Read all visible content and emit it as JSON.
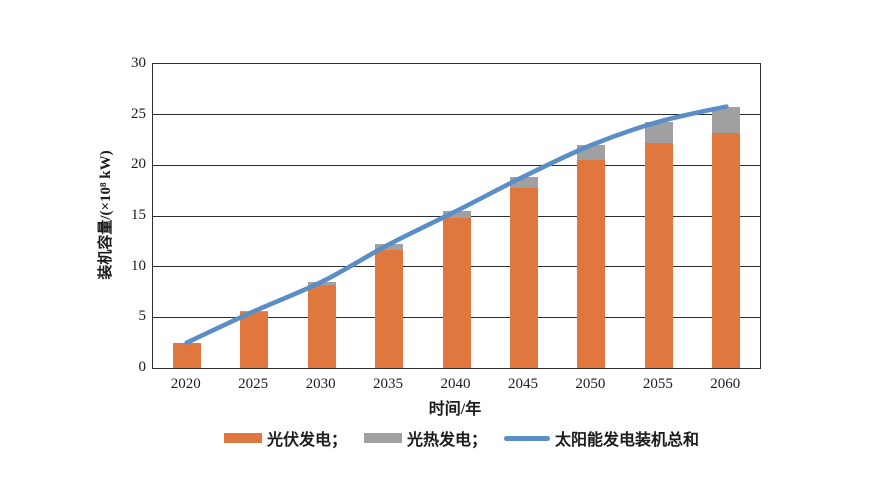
{
  "chart_data": {
    "type": "bar",
    "subtype": "stacked-bar-with-line-overlay",
    "title": "",
    "xlabel": "时间/年",
    "ylabel": "装机容量/(×10⁸ kW)",
    "categories": [
      "2020",
      "2025",
      "2030",
      "2035",
      "2040",
      "2045",
      "2050",
      "2055",
      "2060"
    ],
    "series": [
      {
        "name": "光伏发电",
        "role": "bar",
        "color": "#E0773E",
        "values": [
          2.5,
          5.5,
          8.2,
          11.6,
          14.8,
          17.8,
          20.5,
          22.2,
          23.2
        ]
      },
      {
        "name": "光热发电",
        "role": "bar",
        "color": "#A0A0A2",
        "values": [
          0,
          0.1,
          0.3,
          0.6,
          0.7,
          1.1,
          1.5,
          2.1,
          2.6
        ]
      },
      {
        "name": "太阳能发电装机总和",
        "role": "line",
        "color": "#5B8DC7",
        "values": [
          2.5,
          5.6,
          8.5,
          12.2,
          15.5,
          18.9,
          22.0,
          24.3,
          25.8
        ]
      }
    ],
    "ylim": [
      0,
      30
    ],
    "yticks": [
      0,
      5,
      10,
      15,
      20,
      25,
      30
    ],
    "grid": true,
    "legend_position": "bottom"
  },
  "legend": {
    "items": [
      {
        "label": "光伏发电；",
        "swatch": "bar",
        "color": "#E0773E"
      },
      {
        "label": "光热发电；",
        "swatch": "bar",
        "color": "#A0A0A2"
      },
      {
        "label": "太阳能发电装机总和",
        "swatch": "line",
        "color": "#5B8DC7"
      }
    ]
  },
  "colors": {
    "pv_orange": "#E0773E",
    "csp_gray": "#A0A0A2",
    "line_blue": "#5B8DC7",
    "axis": "#2e2e2e",
    "text": "#1c1c1c",
    "background": "#ffffff"
  }
}
